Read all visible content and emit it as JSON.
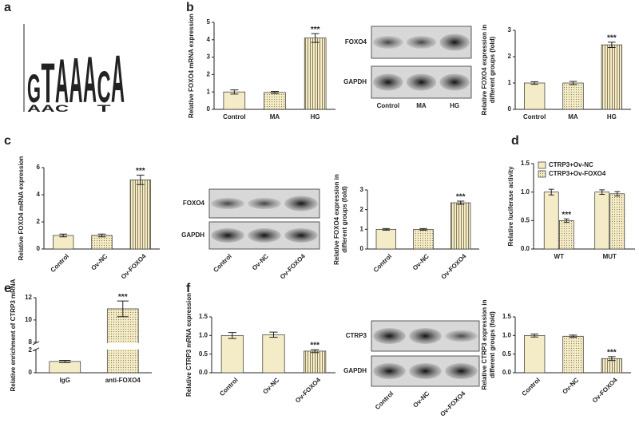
{
  "panel_labels": [
    "a",
    "b",
    "c",
    "d",
    "e",
    "f"
  ],
  "logo": {
    "letters": [
      "G",
      "T",
      "A",
      "A",
      "A",
      "C",
      "A"
    ],
    "minor_letters": [
      "A",
      "A",
      "C",
      null,
      null,
      "T",
      null
    ]
  },
  "blots": [
    {
      "rows": [
        "FOXO4",
        "GAPDH"
      ],
      "lanes": [
        "Control",
        "MA",
        "HG"
      ]
    },
    {
      "rows": [
        "FOXO4",
        "GAPDH"
      ],
      "lanes": [
        "Control",
        "Ov-NC",
        "Ov-FOXO4"
      ]
    },
    {
      "rows": [
        "CTRP3",
        "GAPDH"
      ],
      "lanes": [
        "Control",
        "Ov-NC",
        "Ov-FOXO4"
      ]
    }
  ],
  "chart_data": [
    {
      "type": "bar",
      "ylabel": [
        "Relative FOXO4 mRNA expression"
      ],
      "categories": [
        "Control",
        "MA",
        "HG"
      ],
      "series": [
        {
          "color": "#f4ecc6",
          "hatch": [
            "none",
            "dots",
            "vlines"
          ],
          "values": [
            1.0,
            0.97,
            4.1
          ],
          "errors": [
            0.12,
            0.06,
            0.25
          ],
          "significance": [
            null,
            null,
            "***"
          ]
        }
      ],
      "ylim": [
        0,
        5
      ],
      "yticks": [
        0,
        1,
        2,
        3,
        4,
        5
      ]
    },
    {
      "type": "bar",
      "ylabel": [
        "Relative FOXO4 expression in",
        "different groups (fold)"
      ],
      "categories": [
        "Control",
        "MA",
        "HG"
      ],
      "series": [
        {
          "color": "#f4ecc6",
          "hatch": [
            "none",
            "dots",
            "vlines"
          ],
          "values": [
            1.0,
            1.0,
            2.45
          ],
          "errors": [
            0.05,
            0.06,
            0.1
          ],
          "significance": [
            null,
            null,
            "***"
          ]
        }
      ],
      "ylim": [
        0,
        3
      ],
      "yticks": [
        0,
        1,
        2,
        3
      ]
    },
    {
      "type": "bar",
      "ylabel": [
        "Relative FOXO4 mRNA expression"
      ],
      "categories": [
        "Control",
        "Ov-NC",
        "Ov-FOXO4"
      ],
      "series": [
        {
          "color": "#f4ecc6",
          "hatch": [
            "none",
            "dots",
            "vlines"
          ],
          "values": [
            1.0,
            1.0,
            5.1
          ],
          "errors": [
            0.1,
            0.1,
            0.35
          ],
          "significance": [
            null,
            null,
            "***"
          ]
        }
      ],
      "ylim": [
        0,
        6
      ],
      "yticks": [
        0,
        2,
        4,
        6
      ]
    },
    {
      "type": "bar",
      "ylabel": [
        "Relative FOXO4 expression in",
        "different groups (fold)"
      ],
      "categories": [
        "Control",
        "Ov-NC",
        "Ov-FOXO4"
      ],
      "series": [
        {
          "color": "#f4ecc6",
          "hatch": [
            "none",
            "dots",
            "vlines"
          ],
          "values": [
            1.0,
            1.0,
            2.35
          ],
          "errors": [
            0.04,
            0.04,
            0.08
          ],
          "significance": [
            null,
            null,
            "***"
          ]
        }
      ],
      "ylim": [
        0,
        3
      ],
      "yticks": [
        0,
        1,
        2,
        3
      ]
    },
    {
      "type": "bar",
      "ylabel": [
        "Relative luciferase activity"
      ],
      "categories": [
        "WT",
        "MUT"
      ],
      "series": [
        {
          "name": "CTRP3+Ov-NC",
          "color": "#f4ecc6",
          "hatch": [
            "none",
            "none"
          ],
          "values": [
            1.0,
            1.0
          ],
          "errors": [
            0.05,
            0.04
          ],
          "significance": [
            null,
            null
          ]
        },
        {
          "name": "CTRP3+Ov-FOXO4",
          "color": "#f4ecc6",
          "hatch": [
            "dots",
            "dots"
          ],
          "values": [
            0.5,
            0.97
          ],
          "errors": [
            0.03,
            0.04
          ],
          "significance": [
            "***",
            null
          ]
        }
      ],
      "legend": "top",
      "ylim": [
        0,
        1.5
      ],
      "yticks": [
        {
          "value": 0,
          "label": "0.0"
        },
        0.5,
        {
          "value": 1,
          "label": "1.0"
        },
        1.5
      ]
    },
    {
      "type": "bar",
      "ylabel": [
        "Relative enrichment of CTRP3 mRNA"
      ],
      "categories": [
        "IgG",
        "anti-FOXO4"
      ],
      "series": [
        {
          "color": "#f4ecc6",
          "hatch": [
            "none",
            "dots"
          ],
          "values": [
            1.0,
            11.0
          ],
          "errors": [
            0.1,
            0.7
          ],
          "significance": [
            null,
            "***"
          ]
        }
      ],
      "ylim": [
        0,
        12
      ],
      "ybreak": [
        2,
        8
      ],
      "yticks": [
        0,
        2,
        8,
        10,
        12
      ]
    },
    {
      "type": "bar",
      "ylabel": [
        "Relative CTRP3 mRNA expression"
      ],
      "categories": [
        "Control",
        "Ov-NC",
        "Ov-FOXO4"
      ],
      "series": [
        {
          "color": "#f4ecc6",
          "hatch": [
            "none",
            "none",
            "vlines"
          ],
          "values": [
            1.0,
            1.02,
            0.58
          ],
          "errors": [
            0.08,
            0.07,
            0.04
          ],
          "significance": [
            null,
            null,
            "***"
          ]
        }
      ],
      "ylim": [
        0,
        1.5
      ],
      "yticks": [
        {
          "value": 0,
          "label": "0.0"
        },
        0.5,
        {
          "value": 1,
          "label": "1.0"
        },
        1.5
      ]
    },
    {
      "type": "bar",
      "ylabel": [
        "Relative CTRP3 expression in",
        "different groups (fold)"
      ],
      "categories": [
        "Control",
        "Ov-NC",
        "Ov-FOXO4"
      ],
      "series": [
        {
          "color": "#f4ecc6",
          "hatch": [
            "none",
            "dots",
            "vlines"
          ],
          "values": [
            1.0,
            0.98,
            0.38
          ],
          "errors": [
            0.04,
            0.03,
            0.05
          ],
          "significance": [
            null,
            null,
            "***"
          ]
        }
      ],
      "ylim": [
        0,
        1.5
      ],
      "yticks": [
        {
          "value": 0,
          "label": "0.0"
        },
        0.5,
        {
          "value": 1,
          "label": "1.0"
        },
        1.5
      ]
    }
  ]
}
